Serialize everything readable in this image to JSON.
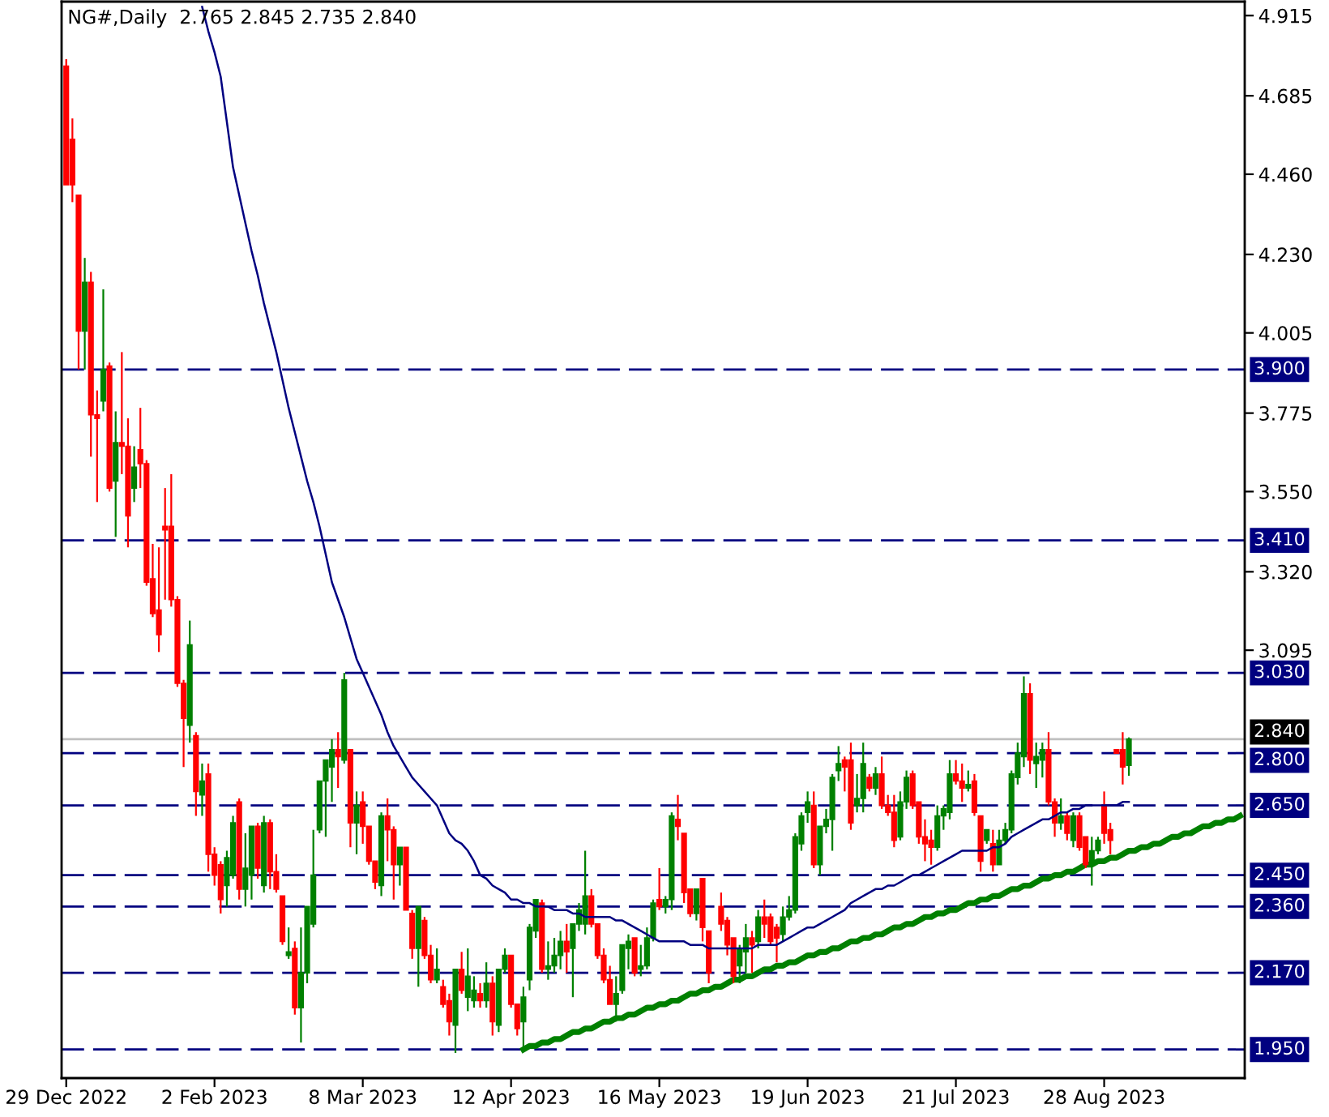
{
  "chart_data": {
    "type": "candlestick",
    "title": "NG#,Daily  2.765 2.845 2.735 2.840",
    "categories": [
      "29 Dec 2022",
      null,
      null,
      null,
      null,
      null,
      null,
      null,
      null,
      null,
      null,
      null,
      null,
      null,
      null,
      null,
      null,
      null,
      null,
      null,
      null,
      null,
      null,
      null,
      "2 Feb 2023",
      null,
      null,
      null,
      null,
      null,
      null,
      null,
      null,
      null,
      null,
      null,
      null,
      null,
      null,
      null,
      null,
      null,
      null,
      null,
      null,
      null,
      null,
      null,
      "8 Mar 2023",
      null,
      null,
      null,
      null,
      null,
      null,
      null,
      null,
      null,
      null,
      null,
      null,
      null,
      null,
      null,
      null,
      null,
      null,
      null,
      null,
      null,
      null,
      null,
      "12 Apr 2023",
      null,
      null,
      null,
      null,
      null,
      null,
      null,
      null,
      null,
      null,
      null,
      null,
      null,
      null,
      null,
      null,
      null,
      null,
      null,
      null,
      null,
      null,
      null,
      "16 May 2023",
      null,
      null,
      null,
      null,
      null,
      null,
      null,
      null,
      null,
      null,
      null,
      null,
      null,
      null,
      null,
      null,
      null,
      null,
      null,
      null,
      null,
      null,
      null,
      "19 Jun 2023",
      null,
      null,
      null,
      null,
      null,
      null,
      null,
      null,
      null,
      null,
      null,
      null,
      null,
      null,
      null,
      null,
      null,
      null,
      null,
      null,
      null,
      null,
      null,
      "21 Jul 2023",
      null,
      null,
      null,
      null,
      null,
      null,
      null,
      null,
      null,
      null,
      null,
      null,
      null,
      null,
      null,
      null,
      null,
      null,
      null,
      null,
      null,
      null,
      null,
      "28 Aug 2023",
      null,
      null,
      null,
      null,
      null,
      null,
      null,
      null,
      null,
      null,
      null,
      null,
      null,
      null,
      null,
      null,
      null,
      null,
      null,
      null,
      null,
      null
    ],
    "ohlc": [
      [
        4.77,
        4.79,
        4.43,
        4.43
      ],
      [
        4.56,
        4.62,
        4.38,
        4.43
      ],
      [
        4.4,
        4.4,
        3.9,
        4.01
      ],
      [
        4.01,
        4.22,
        3.9,
        4.15
      ],
      [
        4.15,
        4.18,
        3.65,
        3.77
      ],
      [
        3.77,
        3.84,
        3.52,
        3.76
      ],
      [
        3.81,
        4.13,
        3.78,
        3.9
      ],
      [
        3.91,
        3.92,
        3.55,
        3.56
      ],
      [
        3.58,
        3.78,
        3.42,
        3.69
      ],
      [
        3.69,
        3.95,
        3.6,
        3.68
      ],
      [
        3.68,
        3.76,
        3.39,
        3.48
      ],
      [
        3.56,
        3.68,
        3.52,
        3.62
      ],
      [
        3.67,
        3.79,
        3.56,
        3.63
      ],
      [
        3.63,
        3.64,
        3.28,
        3.29
      ],
      [
        3.3,
        3.4,
        3.19,
        3.2
      ],
      [
        3.21,
        3.39,
        3.09,
        3.14
      ],
      [
        3.45,
        3.56,
        3.24,
        3.44
      ],
      [
        3.45,
        3.6,
        3.22,
        3.24
      ],
      [
        3.24,
        3.25,
        2.99,
        3.0
      ],
      [
        3.0,
        3.01,
        2.76,
        2.9
      ],
      [
        2.88,
        3.18,
        2.83,
        3.11
      ],
      [
        2.85,
        2.86,
        2.62,
        2.69
      ],
      [
        2.68,
        2.77,
        2.62,
        2.72
      ],
      [
        2.74,
        2.77,
        2.46,
        2.51
      ],
      [
        2.51,
        2.53,
        2.42,
        2.45
      ],
      [
        2.48,
        2.49,
        2.34,
        2.38
      ],
      [
        2.42,
        2.52,
        2.36,
        2.5
      ],
      [
        2.45,
        2.62,
        2.44,
        2.6
      ],
      [
        2.66,
        2.67,
        2.38,
        2.41
      ],
      [
        2.41,
        2.57,
        2.36,
        2.47
      ],
      [
        2.45,
        2.59,
        2.38,
        2.59
      ],
      [
        2.59,
        2.6,
        2.44,
        2.47
      ],
      [
        2.42,
        2.62,
        2.4,
        2.6
      ],
      [
        2.6,
        2.61,
        2.41,
        2.46
      ],
      [
        2.46,
        2.51,
        2.4,
        2.41
      ],
      [
        2.39,
        2.39,
        2.25,
        2.26
      ],
      [
        2.22,
        2.3,
        2.21,
        2.23
      ],
      [
        2.24,
        2.26,
        2.05,
        2.07
      ],
      [
        2.07,
        2.3,
        1.97,
        2.17
      ],
      [
        2.17,
        2.36,
        2.14,
        2.36
      ],
      [
        2.31,
        2.58,
        2.3,
        2.45
      ],
      [
        2.58,
        2.72,
        2.57,
        2.72
      ],
      [
        2.72,
        2.78,
        2.56,
        2.78
      ],
      [
        2.76,
        2.84,
        2.66,
        2.81
      ],
      [
        2.81,
        2.86,
        2.7,
        2.79
      ],
      [
        2.78,
        3.03,
        2.77,
        3.01
      ],
      [
        2.81,
        2.81,
        2.53,
        2.6
      ],
      [
        2.6,
        2.69,
        2.51,
        2.65
      ],
      [
        2.66,
        2.69,
        2.54,
        2.59
      ],
      [
        2.59,
        2.59,
        2.48,
        2.49
      ],
      [
        2.49,
        2.49,
        2.41,
        2.43
      ],
      [
        2.42,
        2.63,
        2.39,
        2.62
      ],
      [
        2.62,
        2.67,
        2.49,
        2.58
      ],
      [
        2.58,
        2.59,
        2.38,
        2.48
      ],
      [
        2.48,
        2.53,
        2.42,
        2.53
      ],
      [
        2.53,
        2.53,
        2.35,
        2.35
      ],
      [
        2.34,
        2.35,
        2.21,
        2.24
      ],
      [
        2.24,
        2.36,
        2.13,
        2.36
      ],
      [
        2.32,
        2.33,
        2.21,
        2.22
      ],
      [
        2.22,
        2.25,
        2.14,
        2.15
      ],
      [
        2.15,
        2.24,
        2.14,
        2.18
      ],
      [
        2.13,
        2.15,
        2.07,
        2.08
      ],
      [
        2.09,
        2.11,
        1.99,
        2.03
      ],
      [
        2.02,
        2.18,
        1.94,
        2.18
      ],
      [
        2.18,
        2.23,
        2.11,
        2.12
      ],
      [
        2.1,
        2.24,
        2.06,
        2.16
      ],
      [
        2.09,
        2.16,
        2.07,
        2.12
      ],
      [
        2.11,
        2.14,
        2.07,
        2.09
      ],
      [
        2.09,
        2.2,
        2.07,
        2.14
      ],
      [
        2.14,
        2.16,
        1.99,
        2.03
      ],
      [
        2.02,
        2.18,
        2.0,
        2.18
      ],
      [
        2.18,
        2.24,
        2.17,
        2.22
      ],
      [
        2.22,
        2.22,
        2.07,
        2.08
      ],
      [
        2.08,
        2.08,
        1.99,
        2.01
      ],
      [
        2.03,
        2.13,
        1.95,
        2.1
      ],
      [
        2.15,
        2.31,
        2.12,
        2.3
      ],
      [
        2.29,
        2.38,
        2.27,
        2.38
      ],
      [
        2.37,
        2.38,
        2.17,
        2.18
      ],
      [
        2.18,
        2.26,
        2.15,
        2.19
      ],
      [
        2.19,
        2.27,
        2.17,
        2.22
      ],
      [
        2.22,
        2.29,
        2.18,
        2.26
      ],
      [
        2.26,
        2.31,
        2.17,
        2.23
      ],
      [
        2.24,
        2.31,
        2.1,
        2.31
      ],
      [
        2.31,
        2.37,
        2.29,
        2.35
      ],
      [
        2.31,
        2.52,
        2.28,
        2.39
      ],
      [
        2.39,
        2.41,
        2.3,
        2.31
      ],
      [
        2.31,
        2.31,
        2.21,
        2.22
      ],
      [
        2.22,
        2.24,
        2.14,
        2.15
      ],
      [
        2.15,
        2.19,
        2.08,
        2.08
      ],
      [
        2.08,
        2.16,
        2.03,
        2.11
      ],
      [
        2.12,
        2.25,
        2.11,
        2.25
      ],
      [
        2.24,
        2.28,
        2.18,
        2.26
      ],
      [
        2.27,
        2.27,
        2.16,
        2.17
      ],
      [
        2.18,
        2.25,
        2.16,
        2.19
      ],
      [
        2.19,
        2.3,
        2.18,
        2.27
      ],
      [
        2.27,
        2.38,
        2.26,
        2.37
      ],
      [
        2.38,
        2.47,
        2.35,
        2.36
      ],
      [
        2.36,
        2.39,
        2.34,
        2.38
      ],
      [
        2.38,
        2.63,
        2.35,
        2.62
      ],
      [
        2.61,
        2.68,
        2.55,
        2.59
      ],
      [
        2.57,
        2.57,
        2.37,
        2.4
      ],
      [
        2.41,
        2.41,
        2.33,
        2.34
      ],
      [
        2.34,
        2.41,
        2.32,
        2.41
      ],
      [
        2.44,
        2.44,
        2.26,
        2.3
      ],
      [
        2.29,
        2.29,
        2.14,
        2.17
      ],
      null,
      [
        2.36,
        2.4,
        2.29,
        2.31
      ],
      [
        2.32,
        2.33,
        2.22,
        2.25
      ],
      [
        2.27,
        2.27,
        2.14,
        2.16
      ],
      [
        2.19,
        2.25,
        2.14,
        2.24
      ],
      [
        2.23,
        2.31,
        2.17,
        2.27
      ],
      [
        2.27,
        2.29,
        2.17,
        2.25
      ],
      [
        2.26,
        2.35,
        2.24,
        2.33
      ],
      [
        2.33,
        2.38,
        2.27,
        2.31
      ],
      [
        2.33,
        2.34,
        2.25,
        2.26
      ],
      [
        2.3,
        2.31,
        2.2,
        2.27
      ],
      [
        2.28,
        2.36,
        2.26,
        2.33
      ],
      [
        2.33,
        2.39,
        2.32,
        2.35
      ],
      [
        2.35,
        2.57,
        2.34,
        2.56
      ],
      [
        2.54,
        2.63,
        2.52,
        2.62
      ],
      [
        2.63,
        2.69,
        2.6,
        2.66
      ],
      [
        2.65,
        2.69,
        2.47,
        2.48
      ],
      [
        2.48,
        2.59,
        2.45,
        2.59
      ],
      [
        2.59,
        2.64,
        2.57,
        2.61
      ],
      [
        2.61,
        2.74,
        2.52,
        2.73
      ],
      [
        2.75,
        2.82,
        2.72,
        2.77
      ],
      [
        2.78,
        2.79,
        2.69,
        2.76
      ],
      [
        2.78,
        2.83,
        2.58,
        2.6
      ],
      [
        2.65,
        2.74,
        2.63,
        2.67
      ],
      [
        2.67,
        2.83,
        2.63,
        2.77
      ],
      [
        2.73,
        2.74,
        2.69,
        2.7
      ],
      [
        2.7,
        2.76,
        2.68,
        2.74
      ],
      [
        2.74,
        2.79,
        2.64,
        2.65
      ],
      [
        2.65,
        2.68,
        2.62,
        2.63
      ],
      [
        2.63,
        2.68,
        2.53,
        2.55
      ],
      [
        2.56,
        2.69,
        2.55,
        2.66
      ],
      [
        2.66,
        2.75,
        2.64,
        2.73
      ],
      [
        2.74,
        2.75,
        2.64,
        2.65
      ],
      [
        2.66,
        2.66,
        2.54,
        2.56
      ],
      [
        2.56,
        2.61,
        2.49,
        2.54
      ],
      [
        2.55,
        2.58,
        2.48,
        2.53
      ],
      [
        2.53,
        2.65,
        2.52,
        2.62
      ],
      [
        2.62,
        2.65,
        2.58,
        2.64
      ],
      [
        2.63,
        2.78,
        2.61,
        2.74
      ],
      [
        2.74,
        2.78,
        2.71,
        2.72
      ],
      [
        2.72,
        2.77,
        2.66,
        2.7
      ],
      [
        2.7,
        2.75,
        2.69,
        2.71
      ],
      [
        2.72,
        2.74,
        2.62,
        2.63
      ],
      [
        2.62,
        2.62,
        2.46,
        2.49
      ],
      [
        2.55,
        2.58,
        2.54,
        2.58
      ],
      [
        2.54,
        2.58,
        2.46,
        2.48
      ],
      [
        2.48,
        2.58,
        2.48,
        2.55
      ],
      [
        2.55,
        2.6,
        2.54,
        2.58
      ],
      [
        2.58,
        2.75,
        2.57,
        2.74
      ],
      [
        2.73,
        2.83,
        2.71,
        2.8
      ],
      [
        2.79,
        3.02,
        2.76,
        2.97
      ],
      [
        2.97,
        3.0,
        2.74,
        2.78
      ],
      [
        2.77,
        2.83,
        2.7,
        2.79
      ],
      [
        2.78,
        2.83,
        2.73,
        2.81
      ],
      [
        2.81,
        2.86,
        2.65,
        2.66
      ],
      [
        2.66,
        2.67,
        2.56,
        2.6
      ],
      [
        2.6,
        2.67,
        2.58,
        2.62
      ],
      [
        2.62,
        2.63,
        2.55,
        2.57
      ],
      [
        2.55,
        2.63,
        2.53,
        2.62
      ],
      [
        2.62,
        2.63,
        2.52,
        2.53
      ],
      [
        2.56,
        2.56,
        2.47,
        2.48
      ],
      [
        2.48,
        2.56,
        2.42,
        2.52
      ],
      [
        2.52,
        2.56,
        2.51,
        2.55
      ],
      [
        2.65,
        2.69,
        2.54,
        2.57
      ],
      [
        2.58,
        2.6,
        2.51,
        2.55
      ],
      [
        2.81,
        2.81,
        2.8,
        2.8
      ],
      [
        2.81,
        2.86,
        2.71,
        2.76
      ],
      [
        2.765,
        2.845,
        2.735,
        2.84
      ],
      null,
      null,
      null,
      null,
      null,
      null,
      null,
      null,
      null,
      null,
      null,
      null,
      null,
      null,
      null,
      null,
      null,
      null
    ],
    "colors": [
      "#ff0000",
      "#ff0000",
      "#ff0000",
      "#008000",
      "#ff0000",
      "#ff0000",
      "#008000",
      "#ff0000",
      "#008000",
      "#ff0000",
      "#ff0000",
      "#008000",
      "#ff0000",
      "#ff0000",
      "#ff0000",
      "#ff0000",
      "#ff0000",
      "#ff0000",
      "#ff0000",
      "#ff0000",
      "#008000",
      "#ff0000",
      "#008000",
      "#ff0000",
      "#ff0000",
      "#ff0000",
      "#008000",
      "#008000",
      "#ff0000",
      "#008000",
      "#008000",
      "#ff0000",
      "#008000",
      "#ff0000",
      "#ff0000",
      "#ff0000",
      "#008000",
      "#ff0000",
      "#008000",
      "#008000",
      "#008000",
      "#008000",
      "#008000",
      "#008000",
      "#ff0000",
      "#008000",
      "#ff0000",
      "#008000",
      "#ff0000",
      "#ff0000",
      "#ff0000",
      "#008000",
      "#ff0000",
      "#ff0000",
      "#008000",
      "#ff0000",
      "#ff0000",
      "#008000",
      "#ff0000",
      "#ff0000",
      "#008000",
      "#ff0000",
      "#ff0000",
      "#008000",
      "#ff0000",
      "#008000",
      "#008000",
      "#ff0000",
      "#008000",
      "#ff0000",
      "#008000",
      "#008000",
      "#ff0000",
      "#ff0000",
      "#008000",
      "#008000",
      "#008000",
      "#ff0000",
      "#008000",
      "#008000",
      "#008000",
      "#ff0000",
      "#008000",
      "#008000",
      "#008000",
      "#ff0000",
      "#ff0000",
      "#ff0000",
      "#ff0000",
      "#008000",
      "#008000",
      "#008000",
      "#ff0000",
      "#008000",
      "#008000",
      "#008000",
      "#ff0000",
      "#008000",
      "#008000",
      "#ff0000",
      "#ff0000",
      "#ff0000",
      "#008000",
      "#ff0000",
      "#ff0000",
      null,
      "#ff0000",
      "#ff0000",
      "#ff0000",
      "#008000",
      "#008000",
      "#ff0000",
      "#008000",
      "#ff0000",
      "#ff0000",
      "#ff0000",
      "#008000",
      "#008000",
      "#008000",
      "#008000",
      "#008000",
      "#ff0000",
      "#008000",
      "#008000",
      "#008000",
      "#008000",
      "#ff0000",
      "#ff0000",
      "#008000",
      "#008000",
      "#ff0000",
      "#008000",
      "#ff0000",
      "#ff0000",
      "#ff0000",
      "#008000",
      "#008000",
      "#ff0000",
      "#ff0000",
      "#ff0000",
      "#ff0000",
      "#008000",
      "#008000",
      "#008000",
      "#ff0000",
      "#ff0000",
      "#008000",
      "#ff0000",
      "#ff0000",
      "#008000",
      "#ff0000",
      "#008000",
      "#008000",
      "#008000",
      "#008000",
      "#008000",
      "#ff0000",
      "#008000",
      "#008000",
      "#ff0000",
      "#ff0000",
      "#008000",
      "#ff0000",
      "#008000",
      "#ff0000",
      "#ff0000",
      "#008000",
      "#008000",
      "#ff0000",
      "#ff0000",
      "#ff0000",
      "#ff0000",
      "#008000",
      null,
      null,
      null,
      null,
      null,
      null,
      null,
      null,
      null,
      null,
      null,
      null,
      null,
      null,
      null,
      null,
      null,
      null
    ],
    "series": [
      {
        "type": "line",
        "color": "#000080",
        "values": [
          null,
          null,
          null,
          null,
          null,
          null,
          null,
          null,
          null,
          null,
          null,
          null,
          null,
          null,
          null,
          null,
          null,
          null,
          null,
          null,
          null,
          null,
          4.94,
          4.87,
          4.81,
          4.74,
          4.61,
          4.48,
          4.4,
          4.32,
          4.24,
          4.17,
          4.09,
          4.02,
          3.95,
          3.87,
          3.79,
          3.72,
          3.65,
          3.58,
          3.52,
          3.45,
          3.37,
          3.29,
          3.24,
          3.19,
          3.13,
          3.07,
          3.03,
          2.99,
          2.95,
          2.91,
          2.86,
          2.82,
          2.79,
          2.76,
          2.73,
          2.71,
          2.69,
          2.67,
          2.65,
          2.61,
          2.57,
          2.55,
          2.54,
          2.52,
          2.49,
          2.45,
          2.44,
          2.42,
          2.41,
          2.4,
          2.38,
          2.38,
          2.37,
          2.37,
          2.36,
          2.36,
          2.36,
          2.35,
          2.35,
          2.35,
          2.34,
          2.34,
          2.33,
          2.33,
          2.33,
          2.33,
          2.33,
          2.32,
          2.32,
          2.31,
          2.3,
          2.29,
          2.28,
          2.27,
          2.26,
          2.26,
          2.26,
          2.26,
          2.26,
          2.25,
          2.25,
          2.25,
          2.24,
          2.24,
          2.24,
          2.24,
          2.24,
          2.24,
          2.24,
          2.24,
          2.25,
          2.25,
          2.25,
          2.25,
          2.26,
          2.27,
          2.28,
          2.29,
          2.3,
          2.3,
          2.31,
          2.32,
          2.33,
          2.34,
          2.35,
          2.37,
          2.38,
          2.39,
          2.4,
          2.41,
          2.41,
          2.42,
          2.42,
          2.43,
          2.44,
          2.45,
          2.45,
          2.46,
          2.47,
          2.48,
          2.49,
          2.5,
          2.51,
          2.52,
          2.52,
          2.52,
          2.52,
          2.52,
          2.53,
          2.53,
          2.54,
          2.56,
          2.57,
          2.58,
          2.59,
          2.6,
          2.61,
          2.61,
          2.62,
          2.63,
          2.63,
          2.64,
          2.64,
          2.65,
          2.65,
          2.65,
          2.65,
          2.65,
          2.65,
          2.66,
          2.66,
          null,
          null,
          null,
          null,
          null,
          null,
          null,
          null,
          null,
          null,
          null,
          null,
          null,
          null,
          null,
          null,
          null,
          null
        ]
      },
      {
        "type": "line",
        "color": "#008000",
        "values": [
          null,
          null,
          null,
          null,
          null,
          null,
          null,
          null,
          null,
          null,
          null,
          null,
          null,
          null,
          null,
          null,
          null,
          null,
          null,
          null,
          null,
          null,
          null,
          null,
          null,
          null,
          null,
          null,
          null,
          null,
          null,
          null,
          null,
          null,
          null,
          null,
          null,
          null,
          null,
          null,
          null,
          null,
          null,
          null,
          null,
          null,
          null,
          null,
          null,
          null,
          null,
          null,
          null,
          null,
          null,
          null,
          null,
          null,
          null,
          null,
          null,
          null,
          null,
          null,
          null,
          null,
          null,
          null,
          null,
          null,
          null,
          null,
          null,
          null,
          1.95,
          1.96,
          1.96,
          1.97,
          1.97,
          1.98,
          1.98,
          1.99,
          2.0,
          2.0,
          2.01,
          2.01,
          2.02,
          2.03,
          2.03,
          2.04,
          2.04,
          2.05,
          2.05,
          2.06,
          2.07,
          2.07,
          2.08,
          2.08,
          2.09,
          2.09,
          2.1,
          2.11,
          2.11,
          2.12,
          2.12,
          2.13,
          2.13,
          2.14,
          2.15,
          2.15,
          2.16,
          2.16,
          2.17,
          2.18,
          2.18,
          2.19,
          2.19,
          2.2,
          2.2,
          2.21,
          2.22,
          2.22,
          2.23,
          2.23,
          2.24,
          2.24,
          2.25,
          2.26,
          2.26,
          2.27,
          2.27,
          2.28,
          2.28,
          2.29,
          2.3,
          2.3,
          2.31,
          2.31,
          2.32,
          2.33,
          2.33,
          2.34,
          2.34,
          2.35,
          2.35,
          2.36,
          2.37,
          2.37,
          2.38,
          2.38,
          2.39,
          2.39,
          2.4,
          2.41,
          2.41,
          2.42,
          2.42,
          2.43,
          2.44,
          2.44,
          2.45,
          2.45,
          2.46,
          2.46,
          2.47,
          2.48,
          2.48,
          2.49,
          2.49,
          2.5,
          2.5,
          2.51,
          2.52,
          2.52,
          2.53,
          2.53,
          2.54,
          2.54,
          2.55,
          2.56,
          2.56,
          2.57,
          2.57,
          2.58,
          2.59,
          2.59,
          2.6,
          2.6,
          2.61,
          2.61,
          2.62
        ]
      }
    ],
    "ylim": [
      1.868,
      4.955
    ],
    "yticks": [
      {
        "value": 4.915,
        "label": "4.915"
      },
      {
        "value": 4.685,
        "label": "4.685"
      },
      {
        "value": 4.46,
        "label": "4.460"
      },
      {
        "value": 4.23,
        "label": "4.230"
      },
      {
        "value": 4.005,
        "label": "4.005"
      },
      {
        "value": 3.775,
        "label": "3.775"
      },
      {
        "value": 3.55,
        "label": "3.550"
      },
      {
        "value": 3.32,
        "label": "3.320"
      },
      {
        "value": 3.095,
        "label": "3.095"
      }
    ],
    "ref_lines": [
      {
        "axis": "y",
        "value": 3.9,
        "label": "3.900",
        "color": "#000080",
        "line_style": "dashed"
      },
      {
        "axis": "y",
        "value": 3.41,
        "label": "3.410",
        "color": "#000080",
        "line_style": "dashed"
      },
      {
        "axis": "y",
        "value": 3.03,
        "label": "3.030",
        "color": "#000080",
        "line_style": "dashed"
      },
      {
        "axis": "y",
        "value": 2.84,
        "label": "2.840",
        "color": "#c0c0c0",
        "line_style": "solid"
      },
      {
        "axis": "y",
        "value": 2.8,
        "label": "2.800",
        "color": "#000080",
        "line_style": "dashed"
      },
      {
        "axis": "y",
        "value": 2.65,
        "label": "2.650",
        "color": "#000080",
        "line_style": "dashed"
      },
      {
        "axis": "y",
        "value": 2.45,
        "label": "2.450",
        "color": "#000080",
        "line_style": "dashed"
      },
      {
        "axis": "y",
        "value": 2.36,
        "label": "2.360",
        "color": "#000080",
        "line_style": "dashed"
      },
      {
        "axis": "y",
        "value": 2.17,
        "label": "2.170",
        "color": "#000080",
        "line_style": "dashed"
      },
      {
        "axis": "y",
        "value": 1.95,
        "label": "1.950",
        "color": "#000080",
        "line_style": "dashed"
      }
    ]
  }
}
